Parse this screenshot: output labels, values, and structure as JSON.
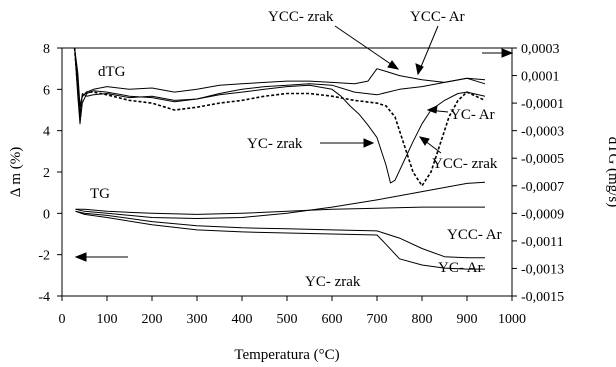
{
  "chart_data": {
    "type": "line",
    "xlabel": "Temperatura (°C)",
    "ylabel_left": "Δ m (%)",
    "ylabel_right": "dTG (mg/s)",
    "xlim": [
      0,
      1000
    ],
    "ylim_left": [
      -4,
      8
    ],
    "ylim_right": [
      -0.0015,
      0.0003
    ],
    "xticks": [
      "0",
      "100",
      "200",
      "300",
      "400",
      "500",
      "600",
      "700",
      "800",
      "900",
      "1000"
    ],
    "yticks_left": [
      "-4",
      "-2",
      "0",
      "2",
      "4",
      "6",
      "8"
    ],
    "yticks_right": [
      "0,0003",
      "0,0001",
      "-0,0001",
      "-0,0003",
      "-0,0005",
      "-0,0007",
      "-0,0009",
      "-0,0011",
      "-0,0013",
      "-0,0015"
    ],
    "grid": false,
    "annotations": {
      "dtg": "dTG",
      "tg": "TG",
      "ycc_zrak_top": "YCC- zrak",
      "ycc_ar_top": "YCC- Ar",
      "yc_ar_mid": "YC- Ar",
      "yc_zrak_mid": "YC- zrak",
      "ycc_zrak_mid": "YCC- zrak",
      "ycc_ar_bottom": "YCC- Ar",
      "yc_ar_bottom": "YC- Ar",
      "yc_zrak_bottom": "YC- zrak"
    },
    "tg_series": [
      {
        "name": "YCC- zrak",
        "axis": "left",
        "x": [
          30,
          50,
          100,
          200,
          300,
          400,
          500,
          600,
          700,
          750,
          800,
          850,
          900,
          940
        ],
        "y": [
          0.2,
          0.1,
          0,
          -0.2,
          -0.25,
          -0.2,
          0,
          0.3,
          0.65,
          0.85,
          1.05,
          1.25,
          1.45,
          1.5
        ]
      },
      {
        "name": "YCC- Ar",
        "axis": "left",
        "x": [
          30,
          50,
          100,
          200,
          300,
          400,
          500,
          600,
          700,
          800,
          900,
          940
        ],
        "y": [
          0.2,
          0.2,
          0.1,
          0,
          -0.05,
          0,
          0.1,
          0.2,
          0.25,
          0.3,
          0.3,
          0.3
        ]
      },
      {
        "name": "YC- Ar",
        "axis": "left",
        "x": [
          30,
          50,
          100,
          200,
          300,
          400,
          500,
          600,
          700,
          750,
          800,
          850,
          900,
          940
        ],
        "y": [
          0.1,
          0,
          -0.1,
          -0.4,
          -0.6,
          -0.7,
          -0.75,
          -0.8,
          -0.85,
          -1.2,
          -1.7,
          -2.1,
          -2.15,
          -2.15
        ]
      },
      {
        "name": "YC- zrak",
        "axis": "left",
        "x": [
          30,
          50,
          100,
          200,
          300,
          400,
          500,
          600,
          700,
          720,
          750,
          800,
          850,
          900,
          940
        ],
        "y": [
          0.1,
          -0.05,
          -0.2,
          -0.55,
          -0.8,
          -0.9,
          -0.95,
          -1,
          -1.05,
          -1.5,
          -2.2,
          -2.5,
          -2.65,
          -2.7,
          -2.7
        ]
      }
    ],
    "dtg_series": [
      {
        "name": "YCC- zrak",
        "axis": "right",
        "style": "solid",
        "x": [
          28,
          35,
          40,
          45,
          55,
          70,
          100,
          150,
          200,
          250,
          300,
          350,
          400,
          450,
          500,
          550,
          600,
          650,
          680,
          700,
          720,
          750,
          800,
          850,
          900,
          940
        ],
        "y": [
          0.0003,
          0.00012,
          -0.00012,
          -5e-05,
          -2e-05,
          0,
          2e-05,
          0,
          1e-05,
          -2e-05,
          0,
          3e-05,
          4e-05,
          5e-05,
          6e-05,
          6e-05,
          5e-05,
          4e-05,
          6e-05,
          0.00015,
          0.00013,
          0.0001,
          7e-05,
          5e-05,
          8e-05,
          7e-05
        ]
      },
      {
        "name": "YCC- Ar",
        "axis": "right",
        "style": "solid",
        "x": [
          28,
          35,
          40,
          45,
          55,
          70,
          100,
          150,
          200,
          250,
          300,
          350,
          400,
          450,
          500,
          550,
          600,
          650,
          700,
          750,
          800,
          850,
          900,
          940
        ],
        "y": [
          0.0003,
          5e-05,
          -0.0002,
          -3e-05,
          -5e-05,
          -4e-05,
          -3e-05,
          -6e-05,
          -5e-05,
          -8e-05,
          -7e-05,
          -3e-05,
          0,
          2e-05,
          3e-05,
          4e-05,
          3e-05,
          -2e-05,
          -4e-05,
          0,
          2e-05,
          5e-05,
          8e-05,
          4e-05
        ]
      },
      {
        "name": "YC- Ar",
        "axis": "right",
        "style": "dashed",
        "x": [
          28,
          35,
          40,
          45,
          55,
          70,
          100,
          150,
          200,
          250,
          300,
          350,
          400,
          450,
          500,
          550,
          600,
          650,
          700,
          720,
          740,
          760,
          780,
          800,
          820,
          840,
          860,
          880,
          900,
          940
        ],
        "y": [
          0.0003,
          0,
          -0.00015,
          -5e-05,
          -2e-05,
          -2e-05,
          -4e-05,
          -8e-05,
          -0.0001,
          -0.00015,
          -0.00013,
          -0.0001,
          -8e-05,
          -5e-05,
          -3e-05,
          -3e-05,
          -5e-05,
          -8e-05,
          -0.0001,
          -0.00012,
          -0.0002,
          -0.0004,
          -0.0006,
          -0.0007,
          -0.0006,
          -0.0004,
          -0.0002,
          -8e-05,
          -2e-05,
          -8e-05
        ]
      },
      {
        "name": "YC- zrak",
        "axis": "right",
        "style": "solid",
        "x": [
          28,
          35,
          40,
          45,
          55,
          70,
          100,
          150,
          200,
          250,
          300,
          350,
          400,
          450,
          500,
          550,
          600,
          620,
          640,
          660,
          680,
          700,
          720,
          730,
          740,
          760,
          780,
          800,
          820,
          850,
          880,
          900,
          940
        ],
        "y": [
          0.0003,
          -5e-05,
          -0.00025,
          -0.0001,
          -3e-05,
          -1e-05,
          -2e-05,
          -5e-05,
          -6e-05,
          -9e-05,
          -7e-05,
          -4e-05,
          -2e-05,
          0,
          2e-05,
          3e-05,
          0,
          -5e-05,
          -0.00012,
          -0.00018,
          -0.00026,
          -0.00035,
          -0.00055,
          -0.00068,
          -0.00066,
          -0.00052,
          -0.00038,
          -0.00025,
          -0.00015,
          -8e-05,
          -3e-05,
          -2e-05,
          -5e-05
        ]
      }
    ]
  }
}
